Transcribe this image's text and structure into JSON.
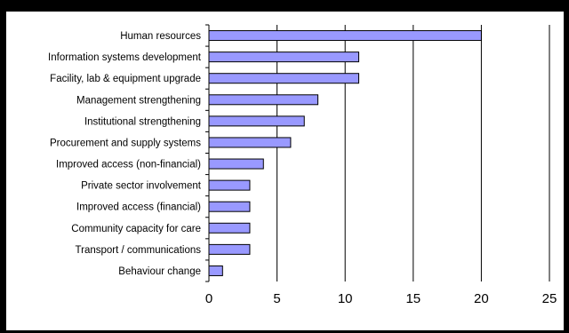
{
  "chart_data": {
    "type": "bar",
    "orientation": "horizontal",
    "categories": [
      "Human resources",
      "Information systems development",
      "Facility, lab & equipment upgrade",
      "Management strengthening",
      "Institutional strengthening",
      "Procurement and supply systems",
      "Improved access (non-financial)",
      "Private sector involvement",
      "Improved access (financial)",
      "Community capacity for care",
      "Transport / communications",
      "Behaviour change"
    ],
    "values": [
      20,
      11,
      11,
      8,
      7,
      6,
      4,
      3,
      3,
      3,
      3,
      1
    ],
    "xlim": [
      0,
      25
    ],
    "xticks": [
      0,
      5,
      10,
      15,
      20,
      25
    ],
    "grid": "vertical gridlines",
    "legend": "none",
    "colors": {
      "bar_fill": "#9999ff",
      "bar_stroke": "#000000",
      "frame": "#000000"
    }
  }
}
